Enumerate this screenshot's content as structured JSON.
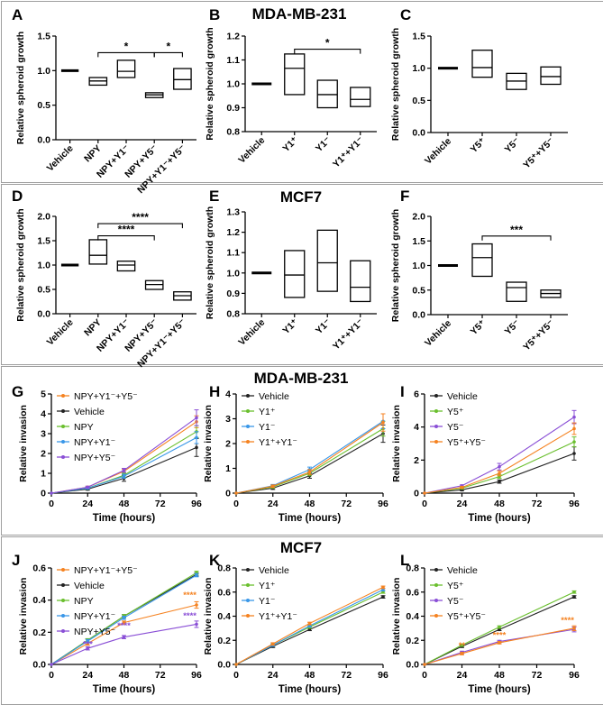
{
  "figure": {
    "sections": [
      {
        "id": "s1",
        "title": "MDA-MB-231"
      },
      {
        "id": "s2",
        "title": "MCF7"
      },
      {
        "id": "s3",
        "title": "MDA-MB-231"
      },
      {
        "id": "s4",
        "title": "MCF7"
      }
    ]
  },
  "colors": {
    "border": "#9e9e9e",
    "axis": "#000000",
    "black": "#222222",
    "green": "#6abf2e",
    "blue": "#3a97e8",
    "orange": "#f58220",
    "purple": "#8a4fd6"
  },
  "chart_data": [
    {
      "id": "A",
      "panel_label": "A",
      "type": "box",
      "ylabel": "Relative spheroid growth",
      "ylim": [
        0,
        1.5
      ],
      "yticks": [
        "0.0",
        "0.5",
        "1.0",
        "1.5"
      ],
      "categories": [
        "Vehicle",
        "NPY",
        "NPY+Y1⁻",
        "NPY+Y5⁻",
        "NPY+Y1⁻+Y5⁻"
      ],
      "boxes": [
        {
          "lo": 1.0,
          "mid": 1.0,
          "hi": 1.0
        },
        {
          "lo": 0.79,
          "mid": 0.85,
          "hi": 0.9
        },
        {
          "lo": 0.9,
          "mid": 0.99,
          "hi": 1.15
        },
        {
          "lo": 0.61,
          "mid": 0.65,
          "hi": 0.68
        },
        {
          "lo": 0.73,
          "mid": 0.87,
          "hi": 1.03
        }
      ],
      "sig": [
        {
          "from": 1,
          "to": 3,
          "label": "*",
          "y": 1.26
        },
        {
          "from": 3,
          "to": 4,
          "label": "*",
          "y": 1.26
        }
      ]
    },
    {
      "id": "B",
      "panel_label": "B",
      "type": "box",
      "ylabel": "Relative spheroid growth",
      "ylim": [
        0.8,
        1.2
      ],
      "yticks": [
        "0.8",
        "0.9",
        "1.0",
        "1.1",
        "1.2"
      ],
      "categories": [
        "Vehicle",
        "Y1⁺",
        "Y1⁻",
        "Y1⁺+Y1⁻"
      ],
      "boxes": [
        {
          "lo": 1.0,
          "mid": 1.0,
          "hi": 1.0
        },
        {
          "lo": 0.955,
          "mid": 1.065,
          "hi": 1.125
        },
        {
          "lo": 0.9,
          "mid": 0.955,
          "hi": 1.015
        },
        {
          "lo": 0.905,
          "mid": 0.935,
          "hi": 0.985
        }
      ],
      "sig": [
        {
          "from": 1,
          "to": 3,
          "label": "*",
          "y": 1.145
        }
      ]
    },
    {
      "id": "C",
      "panel_label": "C",
      "type": "box",
      "ylabel": "Relative spheroid growth",
      "ylim": [
        0,
        1.5
      ],
      "yticks": [
        "0.0",
        "0.5",
        "1.0",
        "1.5"
      ],
      "categories": [
        "Vehicle",
        "Y5⁺",
        "Y5⁻",
        "Y5⁺+Y5⁻"
      ],
      "boxes": [
        {
          "lo": 1.0,
          "mid": 1.0,
          "hi": 1.0
        },
        {
          "lo": 0.86,
          "mid": 1.01,
          "hi": 1.28
        },
        {
          "lo": 0.67,
          "mid": 0.8,
          "hi": 0.92
        },
        {
          "lo": 0.75,
          "mid": 0.87,
          "hi": 1.02
        }
      ],
      "sig": []
    },
    {
      "id": "D",
      "panel_label": "D",
      "type": "box",
      "ylabel": "Relative spheroid growth",
      "ylim": [
        0,
        2.0
      ],
      "yticks": [
        "0.0",
        "0.5",
        "1.0",
        "1.5",
        "2.0"
      ],
      "categories": [
        "Vehicle",
        "NPY",
        "NPY+Y1⁻",
        "NPY+Y5⁻",
        "NPY+Y1⁻+Y5⁻"
      ],
      "boxes": [
        {
          "lo": 1.0,
          "mid": 1.0,
          "hi": 1.0
        },
        {
          "lo": 1.02,
          "mid": 1.2,
          "hi": 1.52
        },
        {
          "lo": 0.88,
          "mid": 1.0,
          "hi": 1.08
        },
        {
          "lo": 0.5,
          "mid": 0.6,
          "hi": 0.68
        },
        {
          "lo": 0.28,
          "mid": 0.37,
          "hi": 0.45
        }
      ],
      "sig": [
        {
          "from": 1,
          "to": 4,
          "label": "****",
          "y": 1.85
        },
        {
          "from": 1,
          "to": 3,
          "label": "****",
          "y": 1.6
        }
      ]
    },
    {
      "id": "E",
      "panel_label": "E",
      "type": "box",
      "ylabel": "Relative spheroid growth",
      "ylim": [
        0.8,
        1.3
      ],
      "yticks": [
        "0.8",
        "0.9",
        "1.0",
        "1.1",
        "1.2",
        "1.3"
      ],
      "categories": [
        "Vehicle",
        "Y1⁺",
        "Y1⁻",
        "Y1⁺+Y1⁻"
      ],
      "boxes": [
        {
          "lo": 1.0,
          "mid": 1.0,
          "hi": 1.0
        },
        {
          "lo": 0.88,
          "mid": 0.99,
          "hi": 1.11
        },
        {
          "lo": 0.91,
          "mid": 1.05,
          "hi": 1.21
        },
        {
          "lo": 0.86,
          "mid": 0.93,
          "hi": 1.06
        }
      ],
      "sig": []
    },
    {
      "id": "F",
      "panel_label": "F",
      "type": "box",
      "ylabel": "Relative spheroid growth",
      "ylim": [
        0,
        2.0
      ],
      "yticks": [
        "0.0",
        "0.5",
        "1.0",
        "1.5",
        "2.0"
      ],
      "categories": [
        "Vehicle",
        "Y5⁺",
        "Y5⁻",
        "Y5⁺+Y5⁻"
      ],
      "boxes": [
        {
          "lo": 1.0,
          "mid": 1.0,
          "hi": 1.0
        },
        {
          "lo": 0.78,
          "mid": 1.16,
          "hi": 1.44
        },
        {
          "lo": 0.27,
          "mid": 0.55,
          "hi": 0.66
        },
        {
          "lo": 0.35,
          "mid": 0.43,
          "hi": 0.5
        }
      ],
      "sig": [
        {
          "from": 1,
          "to": 3,
          "label": "***",
          "y": 1.6
        }
      ]
    },
    {
      "id": "G",
      "panel_label": "G",
      "type": "line",
      "ylabel": "Relative invasion",
      "xlabel": "Time (hours)",
      "x": [
        0,
        24,
        48,
        96
      ],
      "xticks": [
        0,
        24,
        48,
        72,
        96
      ],
      "ylim": [
        0,
        5
      ],
      "yticks": [
        "0",
        "1",
        "2",
        "3",
        "4",
        "5"
      ],
      "ydec": 0,
      "legend": [
        {
          "label": "NPY+Y1⁻+Y5⁻",
          "color": "orange"
        },
        {
          "label": "Vehicle",
          "color": "black"
        },
        {
          "label": "NPY",
          "color": "green"
        },
        {
          "label": "NPY+Y1⁻",
          "color": "blue"
        },
        {
          "label": "NPY+Y5⁻",
          "color": "purple"
        }
      ],
      "series": [
        {
          "name": "NPY+Y1⁻+Y5⁻",
          "color": "orange",
          "values": [
            0,
            0.3,
            1.1,
            3.6
          ],
          "err": [
            0,
            0.05,
            0.1,
            0.3
          ]
        },
        {
          "name": "Vehicle",
          "color": "black",
          "values": [
            0,
            0.2,
            0.75,
            2.3
          ],
          "err": [
            0,
            0.05,
            0.15,
            0.45
          ]
        },
        {
          "name": "NPY",
          "color": "green",
          "values": [
            0,
            0.25,
            0.9,
            3.1
          ],
          "err": [
            0,
            0.05,
            0.1,
            0.3
          ]
        },
        {
          "name": "NPY+Y1⁻",
          "color": "blue",
          "values": [
            0,
            0.25,
            0.85,
            2.8
          ],
          "err": [
            0,
            0.05,
            0.1,
            0.3
          ]
        },
        {
          "name": "NPY+Y5⁻",
          "color": "purple",
          "values": [
            0,
            0.3,
            1.15,
            3.8
          ],
          "err": [
            0,
            0.05,
            0.1,
            0.4
          ]
        }
      ],
      "stars": []
    },
    {
      "id": "H",
      "panel_label": "H",
      "type": "line",
      "ylabel": "Relative invasion",
      "xlabel": "Time (hours)",
      "x": [
        0,
        24,
        48,
        96
      ],
      "xticks": [
        0,
        24,
        48,
        72,
        96
      ],
      "ylim": [
        0,
        4
      ],
      "yticks": [
        "0",
        "1",
        "2",
        "3",
        "4"
      ],
      "ydec": 0,
      "legend": [
        {
          "label": "Vehicle",
          "color": "black"
        },
        {
          "label": "Y1⁺",
          "color": "green"
        },
        {
          "label": "Y1⁻",
          "color": "blue"
        },
        {
          "label": "Y1⁺+Y1⁻",
          "color": "orange"
        }
      ],
      "series": [
        {
          "name": "Vehicle",
          "color": "black",
          "values": [
            0,
            0.2,
            0.7,
            2.4
          ],
          "err": [
            0,
            0.05,
            0.1,
            0.35
          ]
        },
        {
          "name": "Y1⁺",
          "color": "green",
          "values": [
            0,
            0.25,
            0.8,
            2.6
          ],
          "err": [
            0,
            0.05,
            0.1,
            0.3
          ]
        },
        {
          "name": "Y1⁻",
          "color": "blue",
          "values": [
            0,
            0.3,
            0.95,
            2.9
          ],
          "err": [
            0,
            0.05,
            0.1,
            0.3
          ]
        },
        {
          "name": "Y1⁺+Y1⁻",
          "color": "orange",
          "values": [
            0,
            0.28,
            0.85,
            2.85
          ],
          "err": [
            0,
            0.05,
            0.1,
            0.35
          ]
        }
      ],
      "stars": []
    },
    {
      "id": "I",
      "panel_label": "I",
      "type": "line",
      "ylabel": "Relative invasion",
      "xlabel": "Time (hours)",
      "x": [
        0,
        24,
        48,
        96
      ],
      "xticks": [
        0,
        24,
        48,
        72,
        96
      ],
      "ylim": [
        0,
        6
      ],
      "yticks": [
        "0",
        "2",
        "4",
        "6"
      ],
      "ydec": 0,
      "legend": [
        {
          "label": "Vehicle",
          "color": "black"
        },
        {
          "label": "Y5⁺",
          "color": "green"
        },
        {
          "label": "Y5⁻",
          "color": "purple"
        },
        {
          "label": "Y5⁺+Y5⁻",
          "color": "orange"
        }
      ],
      "series": [
        {
          "name": "Vehicle",
          "color": "black",
          "values": [
            0,
            0.2,
            0.7,
            2.4
          ],
          "err": [
            0,
            0.05,
            0.1,
            0.4
          ]
        },
        {
          "name": "Y5⁺",
          "color": "green",
          "values": [
            0,
            0.3,
            1.0,
            3.1
          ],
          "err": [
            0,
            0.05,
            0.1,
            0.3
          ]
        },
        {
          "name": "Y5⁻",
          "color": "purple",
          "values": [
            0,
            0.45,
            1.6,
            4.6
          ],
          "err": [
            0,
            0.05,
            0.2,
            0.4
          ]
        },
        {
          "name": "Y5⁺+Y5⁻",
          "color": "orange",
          "values": [
            0,
            0.35,
            1.2,
            3.9
          ],
          "err": [
            0,
            0.05,
            0.15,
            0.35
          ]
        }
      ],
      "stars": []
    },
    {
      "id": "J",
      "panel_label": "J",
      "type": "line",
      "ylabel": "Relative invasion",
      "xlabel": "Time (hours)",
      "x": [
        0,
        24,
        48,
        96
      ],
      "xticks": [
        0,
        24,
        48,
        72,
        96
      ],
      "ylim": [
        0,
        0.6
      ],
      "yticks": [
        "0.0",
        "0.2",
        "0.4",
        "0.6"
      ],
      "ydec": 1,
      "legend": [
        {
          "label": "NPY+Y1⁻+Y5⁻",
          "color": "orange"
        },
        {
          "label": "Vehicle",
          "color": "black"
        },
        {
          "label": "NPY",
          "color": "green"
        },
        {
          "label": "NPY+Y1⁻",
          "color": "blue"
        },
        {
          "label": "NPY+Y5⁻",
          "color": "purple"
        }
      ],
      "series": [
        {
          "name": "NPY+Y1⁻+Y5⁻",
          "color": "orange",
          "values": [
            0,
            0.13,
            0.26,
            0.37
          ],
          "err": [
            0,
            0.01,
            0.01,
            0.02
          ]
        },
        {
          "name": "Vehicle",
          "color": "black",
          "values": [
            0,
            0.15,
            0.3,
            0.56
          ],
          "err": [
            0,
            0.01,
            0.01,
            0.01
          ]
        },
        {
          "name": "NPY",
          "color": "green",
          "values": [
            0,
            0.15,
            0.3,
            0.57
          ],
          "err": [
            0,
            0.01,
            0.01,
            0.01
          ]
        },
        {
          "name": "NPY+Y1⁻",
          "color": "blue",
          "values": [
            0,
            0.145,
            0.29,
            0.555
          ],
          "err": [
            0,
            0.01,
            0.01,
            0.01
          ]
        },
        {
          "name": "NPY+Y5⁻",
          "color": "purple",
          "values": [
            0,
            0.1,
            0.17,
            0.25
          ],
          "err": [
            0,
            0.01,
            0.01,
            0.02
          ]
        }
      ],
      "stars": [
        {
          "x": 24,
          "y": 0.11,
          "label": "***",
          "color": "purple"
        },
        {
          "x": 48,
          "y": 0.225,
          "label": "****",
          "color": "purple"
        },
        {
          "x": 96,
          "y": 0.415,
          "label": "****",
          "color": "orange"
        },
        {
          "x": 96,
          "y": 0.285,
          "label": "****",
          "color": "purple"
        }
      ]
    },
    {
      "id": "K",
      "panel_label": "K",
      "type": "line",
      "ylabel": "Relative invasion",
      "xlabel": "Time (hours)",
      "x": [
        0,
        24,
        48,
        96
      ],
      "xticks": [
        0,
        24,
        48,
        72,
        96
      ],
      "ylim": [
        0,
        0.8
      ],
      "yticks": [
        "0.0",
        "0.2",
        "0.4",
        "0.6",
        "0.8"
      ],
      "ydec": 1,
      "legend": [
        {
          "label": "Vehicle",
          "color": "black"
        },
        {
          "label": "Y1⁺",
          "color": "green"
        },
        {
          "label": "Y1⁻",
          "color": "blue"
        },
        {
          "label": "Y1⁺+Y1⁻",
          "color": "orange"
        }
      ],
      "series": [
        {
          "name": "Vehicle",
          "color": "black",
          "values": [
            0,
            0.15,
            0.29,
            0.56
          ],
          "err": [
            0,
            0.01,
            0.01,
            0.01
          ]
        },
        {
          "name": "Y1⁺",
          "color": "green",
          "values": [
            0,
            0.16,
            0.31,
            0.6
          ],
          "err": [
            0,
            0.01,
            0.01,
            0.01
          ]
        },
        {
          "name": "Y1⁻",
          "color": "blue",
          "values": [
            0,
            0.16,
            0.32,
            0.62
          ],
          "err": [
            0,
            0.01,
            0.01,
            0.01
          ]
        },
        {
          "name": "Y1⁺+Y1⁻",
          "color": "orange",
          "values": [
            0,
            0.17,
            0.34,
            0.64
          ],
          "err": [
            0,
            0.01,
            0.01,
            0.01
          ]
        }
      ],
      "stars": []
    },
    {
      "id": "L",
      "panel_label": "L",
      "type": "line",
      "ylabel": "Relative invasion",
      "xlabel": "Time (hours)",
      "x": [
        0,
        24,
        48,
        96
      ],
      "xticks": [
        0,
        24,
        48,
        72,
        96
      ],
      "ylim": [
        0,
        0.8
      ],
      "yticks": [
        "0.0",
        "0.2",
        "0.4",
        "0.6",
        "0.8"
      ],
      "ydec": 1,
      "legend": [
        {
          "label": "Vehicle",
          "color": "black"
        },
        {
          "label": "Y5⁺",
          "color": "green"
        },
        {
          "label": "Y5⁻",
          "color": "purple"
        },
        {
          "label": "Y5⁺+Y5⁻",
          "color": "orange"
        }
      ],
      "series": [
        {
          "name": "Vehicle",
          "color": "black",
          "values": [
            0,
            0.15,
            0.29,
            0.56
          ],
          "err": [
            0,
            0.01,
            0.01,
            0.01
          ]
        },
        {
          "name": "Y5⁺",
          "color": "green",
          "values": [
            0,
            0.16,
            0.31,
            0.6
          ],
          "err": [
            0,
            0.01,
            0.01,
            0.01
          ]
        },
        {
          "name": "Y5⁻",
          "color": "purple",
          "values": [
            0,
            0.1,
            0.19,
            0.29
          ],
          "err": [
            0,
            0.01,
            0.01,
            0.02
          ]
        },
        {
          "name": "Y5⁺+Y5⁻",
          "color": "orange",
          "values": [
            0,
            0.09,
            0.18,
            0.3
          ],
          "err": [
            0,
            0.01,
            0.01,
            0.02
          ]
        }
      ],
      "stars": [
        {
          "x": 24,
          "y": 0.135,
          "label": "**",
          "color": "orange"
        },
        {
          "x": 48,
          "y": 0.22,
          "label": "****",
          "color": "orange"
        },
        {
          "x": 96,
          "y": 0.345,
          "label": "****",
          "color": "orange"
        }
      ]
    }
  ]
}
